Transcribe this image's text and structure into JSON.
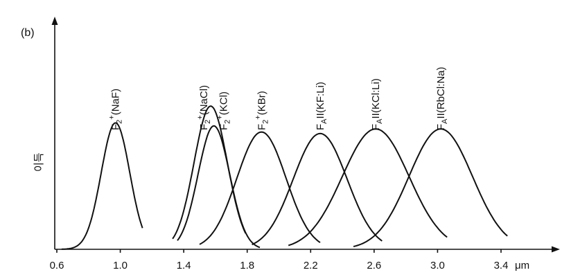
{
  "chart_data": {
    "type": "line",
    "panel_label": "(b)",
    "ylabel": "이득",
    "xunit": "μm",
    "xticks": [
      "0.6",
      "1.0",
      "1.4",
      "1.8",
      "2.2",
      "2.6",
      "3.0",
      "3.4"
    ],
    "xlim": [
      0.6,
      3.4
    ],
    "ylim": [
      0,
      1
    ],
    "grid": false,
    "series": [
      {
        "name": "F2+(NaF)",
        "label_main": "F",
        "label_sub": "2",
        "label_sup": "+",
        "label_rest": "(NaF)",
        "peak_x": 0.97,
        "peak_y": 0.83,
        "x_start": 0.63,
        "x_end": 1.14,
        "sigma": 0.09,
        "skew": 0.0
      },
      {
        "name": "F2+(NaCl)",
        "label_main": "F",
        "label_sub": "2",
        "label_sup": "+",
        "label_rest": "(NaCl)",
        "peak_x": 1.57,
        "peak_y": 0.94,
        "x_start": 1.33,
        "x_end": 1.79,
        "sigma": 0.105,
        "skew": 0.0
      },
      {
        "name": "F2+(KCl)",
        "label_main": "F",
        "label_sub": "2",
        "label_sup": "+",
        "label_rest": "(KCl)",
        "peak_x": 1.59,
        "peak_y": 0.81,
        "x_start": 1.36,
        "x_end": 1.88,
        "sigma": 0.1,
        "skew": 0.0
      },
      {
        "name": "F2+(KBr)",
        "label_main": "F",
        "label_sub": "2",
        "label_sup": "+",
        "label_rest": "(KBr)",
        "peak_x": 1.89,
        "peak_y": 0.77,
        "x_start": 1.5,
        "x_end": 2.26,
        "sigma": 0.155,
        "skew": 0.0
      },
      {
        "name": "FAII(KF:Li)",
        "label_main": "F",
        "label_sub": "A",
        "label_sup": "",
        "label_rest": "II(KF:Li)",
        "peak_x": 2.26,
        "peak_y": 0.76,
        "x_start": 1.83,
        "x_end": 2.65,
        "sigma": 0.17,
        "skew": 0.0
      },
      {
        "name": "FAII(KCl:Li)",
        "label_main": "F",
        "label_sub": "A",
        "label_sup": "",
        "label_rest": "II(KCl:Li)",
        "peak_x": 2.61,
        "peak_y": 0.79,
        "x_start": 2.06,
        "x_end": 3.06,
        "sigma": 0.21,
        "skew": 0.0
      },
      {
        "name": "FAII(RbCl:Na)",
        "label_main": "F",
        "label_sub": "A",
        "label_sup": "",
        "label_rest": "II(RbCl:Na)",
        "peak_x": 3.02,
        "peak_y": 0.79,
        "x_start": 2.47,
        "x_end": 3.44,
        "sigma": 0.2,
        "skew": 0.0
      }
    ]
  }
}
